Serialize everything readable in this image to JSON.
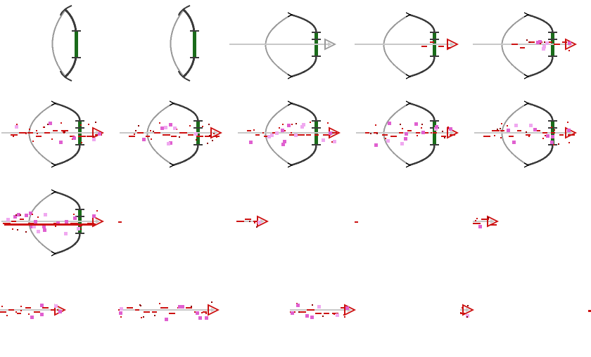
{
  "sheet": {
    "name": "bow-and-arrow-sprite-sheet",
    "columns": 5,
    "rows": 4,
    "background": "#ffffff"
  },
  "colors": {
    "bow_limb": "#3a3a3a",
    "bow_string": "#9a9a9a",
    "grip": "#1a6b1a",
    "arrow_shaft": "#c8c8c8",
    "arrow_red": "#cc1111",
    "arrow_dark_red": "#8b0000",
    "spark_pink": "#e060d0",
    "spark_light": "#f0a8f0"
  },
  "frames": [
    {
      "id": "frame-01",
      "row": 1,
      "col": 1,
      "kind": "bow-idle"
    },
    {
      "id": "frame-02",
      "row": 1,
      "col": 2,
      "kind": "bow-idle"
    },
    {
      "id": "frame-03",
      "row": 1,
      "col": 3,
      "kind": "bow-drawn-arrow"
    },
    {
      "id": "frame-04",
      "row": 1,
      "col": 4,
      "kind": "bow-drawn-charging"
    },
    {
      "id": "frame-05",
      "row": 1,
      "col": 5,
      "kind": "bow-drawn-charging-sparks"
    },
    {
      "id": "frame-06",
      "row": 2,
      "col": 1,
      "kind": "bow-full-charge"
    },
    {
      "id": "frame-07",
      "row": 2,
      "col": 2,
      "kind": "bow-full-charge"
    },
    {
      "id": "frame-08",
      "row": 2,
      "col": 3,
      "kind": "bow-full-charge"
    },
    {
      "id": "frame-09",
      "row": 2,
      "col": 4,
      "kind": "bow-full-charge"
    },
    {
      "id": "frame-10",
      "row": 2,
      "col": 5,
      "kind": "bow-full-charge"
    },
    {
      "id": "frame-11",
      "row": 3,
      "col": 1,
      "kind": "bow-release"
    },
    {
      "id": "frame-12",
      "row": 3,
      "col": 2,
      "kind": "arrow-dot"
    },
    {
      "id": "frame-13",
      "row": 3,
      "col": 3,
      "kind": "arrow-small"
    },
    {
      "id": "frame-14",
      "row": 3,
      "col": 4,
      "kind": "arrow-dot"
    },
    {
      "id": "frame-15",
      "row": 3,
      "col": 5,
      "kind": "arrow-tiny"
    },
    {
      "id": "frame-16",
      "row": 4,
      "col": 1,
      "kind": "arrow-flight"
    },
    {
      "id": "frame-17",
      "row": 4,
      "col": 2,
      "kind": "arrow-flight-long"
    },
    {
      "id": "frame-18",
      "row": 4,
      "col": 3,
      "kind": "arrow-flight-tail"
    },
    {
      "id": "frame-19",
      "row": 4,
      "col": 4,
      "kind": "arrow-fragment"
    },
    {
      "id": "frame-20",
      "row": 4,
      "col": 5,
      "kind": "arrow-edge"
    }
  ]
}
